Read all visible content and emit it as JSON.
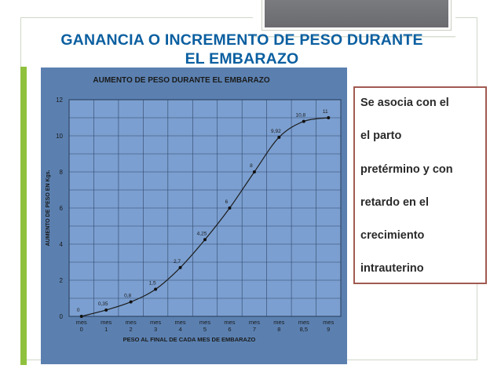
{
  "slide": {
    "title_lines": [
      "GANANCIA O INCREMENTO DE PESO DURANTE",
      "EL EMBARAZO"
    ],
    "note_lines": [
      "Se asocia con el",
      "el parto",
      "pretérmino y con",
      "retardo en el",
      "crecimiento",
      "intrauterino"
    ],
    "colors": {
      "title": "#0b5fa0",
      "accent_bar": "#8fc13e",
      "note_border": "#a15a52",
      "chart_bg": "#5b80b0",
      "line": "#1c1c1c"
    }
  },
  "chart_data": {
    "type": "line",
    "title": "AUMENTO DE PESO DURANTE EL EMBARAZO",
    "xlabel": "PESO AL FINAL DE CADA MES DE EMBARAZO",
    "ylabel": "AUMENTO DE PESO EN Kgs.",
    "ylim": [
      0,
      12
    ],
    "yticks": [
      0,
      2,
      4,
      6,
      8,
      10,
      12
    ],
    "categories": [
      [
        "mes",
        "0"
      ],
      [
        "mes",
        "1"
      ],
      [
        "mes",
        "2"
      ],
      [
        "mes",
        "3"
      ],
      [
        "mes",
        "4"
      ],
      [
        "mes",
        "5"
      ],
      [
        "mes",
        "6"
      ],
      [
        "mes",
        "7"
      ],
      [
        "mes",
        "8"
      ],
      [
        "mes",
        "8,5"
      ],
      [
        "mes",
        "9"
      ]
    ],
    "x": [
      0,
      1,
      2,
      3,
      4,
      5,
      6,
      7,
      8,
      8.5,
      9
    ],
    "series": [
      {
        "values": [
          0,
          0.35,
          0.8,
          1.5,
          2.7,
          4.25,
          6,
          8,
          9.92,
          10.8,
          11
        ],
        "labels": [
          "0",
          "0,35",
          "0,8",
          "1,5",
          "2,7",
          "4,25",
          "6",
          "8",
          "9,92",
          "10,8",
          "11"
        ]
      }
    ],
    "grid": true,
    "legend": "none"
  }
}
